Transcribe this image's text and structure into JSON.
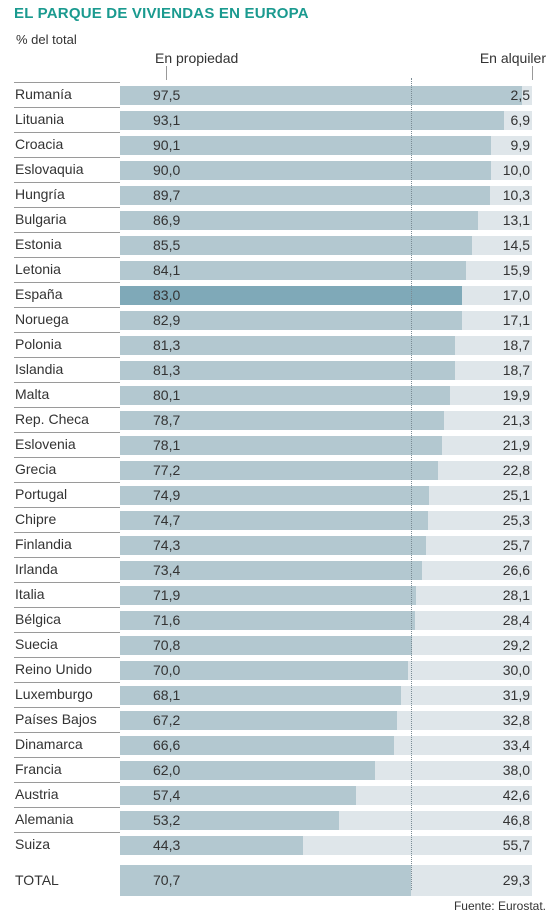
{
  "title": "EL PARQUE DE VIVIENDAS EN EUROPA",
  "subtitle": "% del total",
  "headers": {
    "own": "En propiedad",
    "rent": "En alquiler"
  },
  "source": "Fuente: Eurostat.",
  "colors": {
    "title": "#1a9a8f",
    "own_bar": "#b3c8d0",
    "own_highlight": "#7fa9b8",
    "rent_bar": "#dfe6ea"
  },
  "chart_data": {
    "type": "bar",
    "orientation": "horizontal",
    "stacked": true,
    "xlim": [
      0,
      100
    ],
    "highlight": "España",
    "categories": [
      "Rumanía",
      "Lituania",
      "Croacia",
      "Eslovaquia",
      "Hungría",
      "Bulgaria",
      "Estonia",
      "Letonia",
      "España",
      "Noruega",
      "Polonia",
      "Islandia",
      "Malta",
      "Rep. Checa",
      "Eslovenia",
      "Grecia",
      "Portugal",
      "Chipre",
      "Finlandia",
      "Irlanda",
      "Italia",
      "Bélgica",
      "Suecia",
      "Reino Unido",
      "Luxemburgo",
      "Países Bajos",
      "Dinamarca",
      "Francia",
      "Austria",
      "Alemania",
      "Suiza",
      "TOTAL"
    ],
    "series": [
      {
        "name": "En propiedad",
        "values": [
          97.5,
          93.1,
          90.1,
          90.0,
          89.7,
          86.9,
          85.5,
          84.1,
          83.0,
          82.9,
          81.3,
          81.3,
          80.1,
          78.7,
          78.1,
          77.2,
          74.9,
          74.7,
          74.3,
          73.4,
          71.9,
          71.6,
          70.8,
          70.0,
          68.1,
          67.2,
          66.6,
          62.0,
          57.4,
          53.2,
          44.3,
          70.7
        ],
        "labels": [
          "97,5",
          "93,1",
          "90,1",
          "90,0",
          "89,7",
          "86,9",
          "85,5",
          "84,1",
          "83,0",
          "82,9",
          "81,3",
          "81,3",
          "80,1",
          "78,7",
          "78,1",
          "77,2",
          "74,9",
          "74,7",
          "74,3",
          "73,4",
          "71,9",
          "71,6",
          "70,8",
          "70,0",
          "68,1",
          "67,2",
          "66,6",
          "62,0",
          "57,4",
          "53,2",
          "44,3",
          "70,7"
        ]
      },
      {
        "name": "En alquiler",
        "values": [
          2.5,
          6.9,
          9.9,
          10.0,
          10.3,
          13.1,
          14.5,
          15.9,
          17.0,
          17.1,
          18.7,
          18.7,
          19.9,
          21.3,
          21.9,
          22.8,
          25.1,
          25.3,
          25.7,
          26.6,
          28.1,
          28.4,
          29.2,
          30.0,
          31.9,
          32.8,
          33.4,
          38.0,
          42.6,
          46.8,
          55.7,
          29.3
        ],
        "labels": [
          "2,5",
          "6,9",
          "9,9",
          "10,0",
          "10,3",
          "13,1",
          "14,5",
          "15,9",
          "17,0",
          "17,1",
          "18,7",
          "18,7",
          "19,9",
          "21,3",
          "21,9",
          "22,8",
          "25,1",
          "25,3",
          "25,7",
          "26,6",
          "28,1",
          "28,4",
          "29,2",
          "30,0",
          "31,9",
          "32,8",
          "33,4",
          "38,0",
          "42,6",
          "46,8",
          "55,7",
          "29,3"
        ]
      }
    ]
  }
}
